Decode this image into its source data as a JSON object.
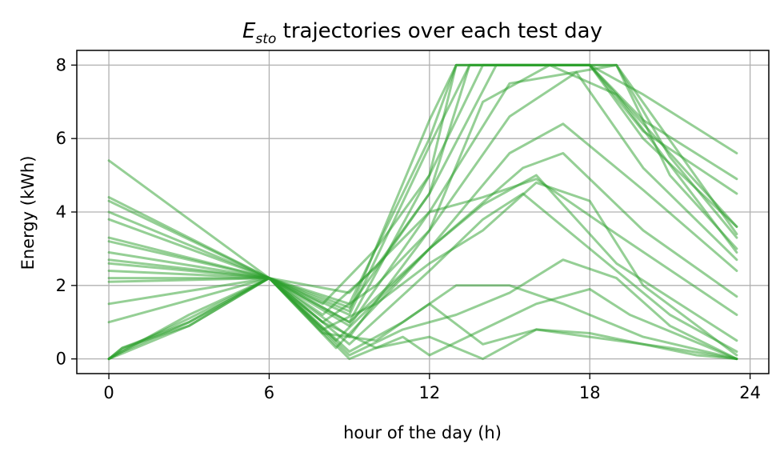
{
  "chart_data": {
    "type": "line",
    "title_main": "E",
    "title_sub": "sto",
    "title_rest": " trajectories over each test day",
    "xlabel": "hour of the day (h)",
    "ylabel": "Energy (kWh)",
    "xticks": [
      0,
      6,
      12,
      18,
      24
    ],
    "yticks": [
      0,
      2,
      4,
      6,
      8
    ],
    "xlim": [
      -1.2,
      24.7
    ],
    "ylim": [
      -0.4,
      8.4
    ],
    "grid": true,
    "line_color": "#2ca02c",
    "line_opacity": 0.5,
    "series": [
      {
        "x": [
          0,
          6,
          9,
          12,
          13,
          18,
          20,
          23.5
        ],
        "values": [
          5.4,
          2.2,
          1.5,
          6.0,
          8.0,
          8.0,
          7.2,
          5.6
        ]
      },
      {
        "x": [
          0,
          6,
          9,
          12,
          13,
          18,
          20,
          23.5
        ],
        "values": [
          4.4,
          2.2,
          1.3,
          6.5,
          8.0,
          8.0,
          6.5,
          4.9
        ]
      },
      {
        "x": [
          0,
          6,
          9,
          12,
          13.5,
          18,
          20,
          23.5
        ],
        "values": [
          4.3,
          2.2,
          1.2,
          5.8,
          8.0,
          8.0,
          6.2,
          4.5
        ]
      },
      {
        "x": [
          0,
          6,
          9,
          12,
          14,
          18,
          20,
          23.5
        ],
        "values": [
          4.0,
          2.2,
          1.0,
          5.0,
          8.0,
          8.0,
          6.0,
          3.6
        ]
      },
      {
        "x": [
          0,
          6,
          9,
          12,
          14.5,
          19,
          21,
          23.5
        ],
        "values": [
          3.8,
          2.2,
          1.4,
          4.5,
          8.0,
          8.0,
          5.5,
          3.3
        ]
      },
      {
        "x": [
          0,
          6,
          9,
          12,
          15,
          19,
          21,
          23.5
        ],
        "values": [
          3.3,
          2.2,
          0.9,
          4.0,
          7.5,
          8.0,
          5.0,
          3.0
        ]
      },
      {
        "x": [
          0,
          6,
          9,
          12,
          15,
          17.5,
          20,
          23.5
        ],
        "values": [
          3.2,
          2.2,
          0.6,
          3.5,
          6.6,
          7.8,
          5.2,
          2.7
        ]
      },
      {
        "x": [
          0,
          6,
          8.5,
          12,
          15,
          17,
          20,
          23.5
        ],
        "values": [
          2.9,
          2.2,
          0.5,
          3.0,
          5.6,
          6.4,
          4.6,
          2.4
        ]
      },
      {
        "x": [
          0,
          6,
          8.5,
          12,
          15.5,
          17,
          20,
          23.5
        ],
        "values": [
          2.7,
          2.2,
          0.3,
          3.0,
          5.2,
          5.6,
          3.5,
          1.7
        ]
      },
      {
        "x": [
          0,
          6,
          9,
          12,
          14,
          16,
          19,
          23.5
        ],
        "values": [
          2.6,
          2.2,
          1.8,
          4.0,
          4.4,
          4.9,
          3.4,
          1.2
        ]
      },
      {
        "x": [
          0,
          6,
          9,
          12,
          14,
          16,
          19,
          23.5
        ],
        "values": [
          2.4,
          2.2,
          1.0,
          3.0,
          4.2,
          5.0,
          2.6,
          0.5
        ]
      },
      {
        "x": [
          0,
          6,
          9,
          12,
          14,
          15.5,
          18,
          21,
          23.5
        ],
        "values": [
          2.2,
          2.2,
          0.4,
          2.4,
          3.8,
          4.5,
          3.0,
          1.2,
          0.2
        ]
      },
      {
        "x": [
          0,
          6,
          9,
          11,
          13,
          15,
          17,
          20,
          23.5
        ],
        "values": [
          2.1,
          2.2,
          0.2,
          1.0,
          2.0,
          2.0,
          1.5,
          0.6,
          0.0
        ]
      },
      {
        "x": [
          0,
          6,
          9,
          11,
          13,
          15,
          17,
          19,
          21,
          23.5
        ],
        "values": [
          1.5,
          2.2,
          0.1,
          0.8,
          1.2,
          1.8,
          2.7,
          2.2,
          0.9,
          0.0
        ]
      },
      {
        "x": [
          0,
          6,
          9,
          11,
          12,
          14,
          16,
          18,
          19.5,
          23.5
        ],
        "values": [
          1.0,
          2.2,
          0.0,
          0.6,
          0.1,
          0.8,
          1.5,
          1.9,
          1.2,
          0.0
        ]
      },
      {
        "x": [
          0,
          0.5,
          3,
          6,
          8,
          10,
          12,
          13,
          15.5,
          18,
          23.5
        ],
        "values": [
          0.0,
          0.3,
          0.9,
          2.2,
          1.5,
          3.0,
          5.0,
          8.0,
          8.0,
          8.0,
          3.6
        ]
      },
      {
        "x": [
          0,
          0.5,
          3,
          6,
          8,
          10,
          12,
          13.5,
          16,
          19,
          23.5
        ],
        "values": [
          0.0,
          0.3,
          1.0,
          2.2,
          1.2,
          2.5,
          4.5,
          8.0,
          8.0,
          8.0,
          3.4
        ]
      },
      {
        "x": [
          0,
          0.5,
          3,
          6,
          8,
          10,
          12,
          14,
          16.5,
          19,
          23.5
        ],
        "values": [
          0.0,
          0.25,
          1.1,
          2.2,
          1.0,
          2.0,
          3.5,
          7.0,
          8.0,
          7.2,
          2.9
        ]
      },
      {
        "x": [
          0,
          0.5,
          3,
          6,
          8,
          10,
          12,
          14,
          16,
          18,
          20,
          23.5
        ],
        "values": [
          0.0,
          0.2,
          1.2,
          2.2,
          0.8,
          1.5,
          2.6,
          3.5,
          4.8,
          4.3,
          2.0,
          0.1
        ]
      },
      {
        "x": [
          0,
          0.5,
          3,
          6,
          8,
          10,
          12,
          14,
          16,
          18,
          21,
          23.5
        ],
        "values": [
          0.0,
          0.2,
          1.0,
          2.2,
          0.7,
          0.5,
          1.5,
          0.4,
          0.8,
          0.6,
          0.3,
          0.0
        ]
      },
      {
        "x": [
          0,
          0.5,
          3,
          6,
          8,
          10,
          12,
          14,
          16,
          18,
          22,
          23.5
        ],
        "values": [
          0.0,
          0.15,
          0.9,
          2.2,
          1.0,
          0.3,
          0.6,
          0.0,
          0.8,
          0.7,
          0.1,
          0.0
        ]
      }
    ]
  }
}
